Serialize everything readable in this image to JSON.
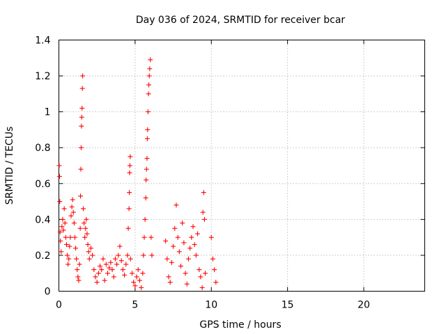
{
  "chart_data": {
    "type": "scatter",
    "title": "Day 036 of 2024, SRMTID for receiver bcar",
    "xlabel": "GPS time / hours",
    "ylabel": "SRMTID / TECUs",
    "xlim": [
      0,
      24
    ],
    "ylim": [
      0,
      1.4
    ],
    "x_ticks": [
      0,
      5,
      10,
      15,
      20
    ],
    "y_ticks": [
      0,
      0.2,
      0.4,
      0.6,
      0.8,
      1.0,
      1.2,
      1.4
    ],
    "x_tick_labels": [
      "0",
      "5",
      "10",
      "15",
      "20"
    ],
    "y_tick_labels": [
      "0",
      "0.2",
      "0.4",
      "0.6",
      "0.8",
      "1",
      "1.2",
      "1.4"
    ],
    "grid": true,
    "marker": "+",
    "marker_color": "#ff0000",
    "series": [
      {
        "name": "SRMTID",
        "points": [
          [
            0.02,
            0.7
          ],
          [
            0.04,
            0.64
          ],
          [
            0.06,
            0.5
          ],
          [
            0.08,
            0.33
          ],
          [
            0.1,
            0.28
          ],
          [
            0.15,
            0.22
          ],
          [
            0.2,
            0.36
          ],
          [
            0.25,
            0.4
          ],
          [
            0.3,
            0.34
          ],
          [
            0.35,
            0.46
          ],
          [
            0.4,
            0.38
          ],
          [
            0.45,
            0.3
          ],
          [
            0.5,
            0.26
          ],
          [
            0.55,
            0.2
          ],
          [
            0.6,
            0.15
          ],
          [
            0.65,
            0.18
          ],
          [
            0.7,
            0.25
          ],
          [
            0.75,
            0.3
          ],
          [
            0.8,
            0.42
          ],
          [
            0.85,
            0.47
          ],
          [
            0.9,
            0.51
          ],
          [
            0.95,
            0.44
          ],
          [
            1.0,
            0.38
          ],
          [
            1.05,
            0.3
          ],
          [
            1.1,
            0.24
          ],
          [
            1.15,
            0.18
          ],
          [
            1.2,
            0.12
          ],
          [
            1.25,
            0.08
          ],
          [
            1.3,
            0.06
          ],
          [
            1.35,
            0.15
          ],
          [
            1.4,
            0.35
          ],
          [
            1.42,
            0.53
          ],
          [
            1.44,
            0.68
          ],
          [
            1.46,
            0.8
          ],
          [
            1.48,
            0.92
          ],
          [
            1.5,
            0.97
          ],
          [
            1.52,
            1.02
          ],
          [
            1.54,
            1.13
          ],
          [
            1.56,
            1.2
          ],
          [
            1.6,
            0.46
          ],
          [
            1.65,
            0.38
          ],
          [
            1.7,
            0.3
          ],
          [
            1.75,
            0.35
          ],
          [
            1.8,
            0.4
          ],
          [
            1.85,
            0.32
          ],
          [
            1.9,
            0.26
          ],
          [
            1.95,
            0.22
          ],
          [
            2.0,
            0.18
          ],
          [
            2.1,
            0.24
          ],
          [
            2.2,
            0.2
          ],
          [
            2.3,
            0.12
          ],
          [
            2.4,
            0.08
          ],
          [
            2.5,
            0.05
          ],
          [
            2.6,
            0.1
          ],
          [
            2.7,
            0.14
          ],
          [
            2.8,
            0.12
          ],
          [
            2.9,
            0.18
          ],
          [
            3.0,
            0.06
          ],
          [
            3.1,
            0.15
          ],
          [
            3.2,
            0.1
          ],
          [
            3.3,
            0.13
          ],
          [
            3.4,
            0.16
          ],
          [
            3.5,
            0.12
          ],
          [
            3.6,
            0.08
          ],
          [
            3.7,
            0.18
          ],
          [
            3.8,
            0.15
          ],
          [
            3.9,
            0.2
          ],
          [
            4.0,
            0.25
          ],
          [
            4.1,
            0.17
          ],
          [
            4.2,
            0.12
          ],
          [
            4.3,
            0.09
          ],
          [
            4.4,
            0.15
          ],
          [
            4.5,
            0.2
          ],
          [
            4.55,
            0.35
          ],
          [
            4.6,
            0.46
          ],
          [
            4.62,
            0.55
          ],
          [
            4.64,
            0.66
          ],
          [
            4.66,
            0.7
          ],
          [
            4.68,
            0.75
          ],
          [
            4.7,
            0.18
          ],
          [
            4.8,
            0.1
          ],
          [
            4.9,
            0.05
          ],
          [
            5.0,
            0.03
          ],
          [
            5.1,
            0.08
          ],
          [
            5.2,
            0.12
          ],
          [
            5.3,
            0.06
          ],
          [
            5.4,
            0.02
          ],
          [
            5.5,
            0.1
          ],
          [
            5.55,
            0.2
          ],
          [
            5.6,
            0.3
          ],
          [
            5.65,
            0.4
          ],
          [
            5.7,
            0.52
          ],
          [
            5.72,
            0.62
          ],
          [
            5.75,
            0.68
          ],
          [
            5.78,
            0.74
          ],
          [
            5.8,
            0.85
          ],
          [
            5.82,
            0.9
          ],
          [
            5.85,
            1.0
          ],
          [
            5.88,
            1.1
          ],
          [
            5.9,
            1.15
          ],
          [
            5.93,
            1.2
          ],
          [
            5.96,
            1.24
          ],
          [
            6.0,
            1.29
          ],
          [
            6.05,
            0.3
          ],
          [
            6.1,
            0.2
          ],
          [
            7.0,
            0.28
          ],
          [
            7.1,
            0.18
          ],
          [
            7.2,
            0.08
          ],
          [
            7.3,
            0.05
          ],
          [
            7.4,
            0.16
          ],
          [
            7.5,
            0.25
          ],
          [
            7.6,
            0.35
          ],
          [
            7.7,
            0.48
          ],
          [
            7.8,
            0.3
          ],
          [
            7.9,
            0.22
          ],
          [
            8.0,
            0.14
          ],
          [
            8.1,
            0.38
          ],
          [
            8.2,
            0.27
          ],
          [
            8.3,
            0.1
          ],
          [
            8.4,
            0.04
          ],
          [
            8.5,
            0.18
          ],
          [
            8.6,
            0.24
          ],
          [
            8.7,
            0.3
          ],
          [
            8.8,
            0.36
          ],
          [
            8.9,
            0.26
          ],
          [
            9.0,
            0.2
          ],
          [
            9.1,
            0.32
          ],
          [
            9.2,
            0.12
          ],
          [
            9.3,
            0.08
          ],
          [
            9.4,
            0.02
          ],
          [
            9.45,
            0.44
          ],
          [
            9.5,
            0.55
          ],
          [
            9.55,
            0.4
          ],
          [
            9.6,
            0.1
          ],
          [
            10.0,
            0.3
          ],
          [
            10.1,
            0.18
          ],
          [
            10.2,
            0.12
          ],
          [
            10.3,
            0.05
          ]
        ]
      }
    ]
  }
}
